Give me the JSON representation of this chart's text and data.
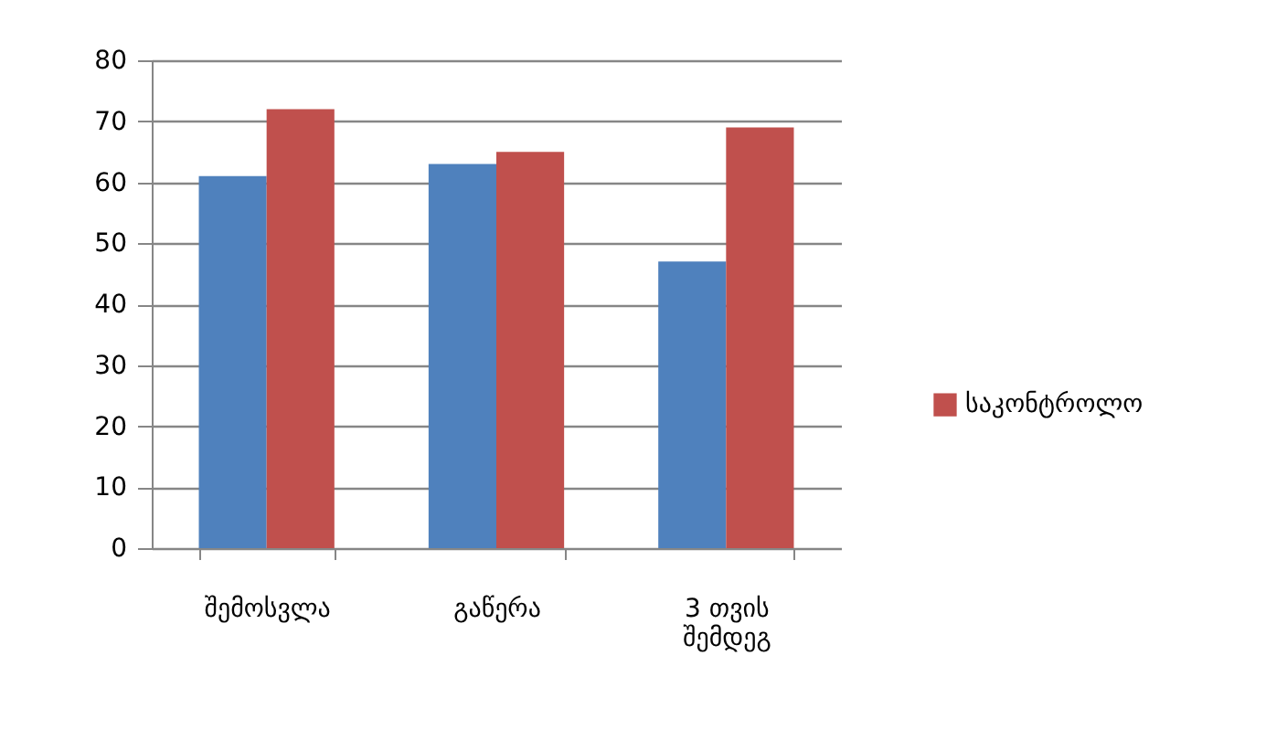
{
  "chart_data": {
    "type": "bar",
    "categories": [
      "შემოსვლა",
      "გაწერა",
      "3 თვის შემდეგ"
    ],
    "series": [
      {
        "color": "#4f81bd",
        "values": [
          61,
          63,
          47
        ]
      },
      {
        "name": "საკონტროლო",
        "color": "#c0504d",
        "values": [
          72,
          65,
          69
        ]
      }
    ],
    "ylim": [
      0,
      80
    ],
    "yticks": [
      0,
      10,
      20,
      30,
      40,
      50,
      60,
      70,
      80
    ],
    "grid": "y",
    "legend": "right"
  }
}
